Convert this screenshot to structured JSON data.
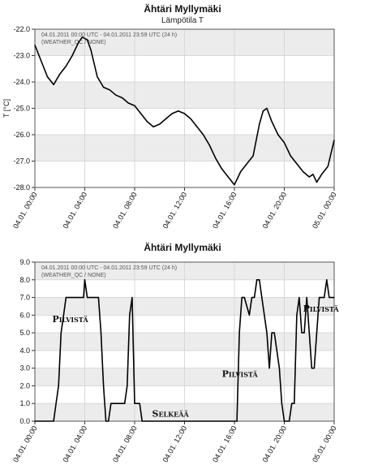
{
  "chart_data": [
    {
      "type": "line",
      "title": "Ähtäri Myllymäki",
      "subtitle": "Lämpötila T",
      "ylabel": "T [°C]",
      "xlabel": "",
      "ylim": [
        -28.0,
        -22.0
      ],
      "xlim": [
        0,
        24
      ],
      "y_ticks": [
        "-22.0",
        "-23.0",
        "-24.0",
        "-25.0",
        "-26.0",
        "-27.0",
        "-28.0"
      ],
      "x_ticks": [
        {
          "x": 0,
          "label": "04.01. 00:00"
        },
        {
          "x": 4,
          "label": "04.01. 04:00"
        },
        {
          "x": 8,
          "label": "04.01. 08:00"
        },
        {
          "x": 12,
          "label": "04.01. 12:00"
        },
        {
          "x": 16,
          "label": "04.01. 16:00"
        },
        {
          "x": 20,
          "label": "04.01. 20:00"
        },
        {
          "x": 24,
          "label": "05.01. 00:00"
        }
      ],
      "info_lines": [
        "04.01.2011 00:00 UTC - 04.01.2011 23:59 UTC (24 h)",
        "(WEATHER_QC / NONE)"
      ],
      "grid": true,
      "series": [
        {
          "name": "",
          "color": "#000000",
          "x": [
            0,
            0.5,
            1.0,
            1.5,
            2.0,
            2.5,
            3.0,
            3.5,
            3.8,
            4.2,
            4.5,
            5.0,
            5.5,
            6.0,
            6.5,
            7.0,
            7.5,
            8.0,
            8.5,
            9.0,
            9.5,
            10.0,
            10.5,
            11.0,
            11.5,
            12.0,
            12.5,
            13.0,
            13.5,
            14.0,
            14.5,
            15.0,
            15.5,
            16.0,
            16.5,
            17.0,
            17.5,
            18.0,
            18.3,
            18.6,
            19.0,
            19.5,
            20.0,
            20.5,
            21.0,
            21.5,
            22.0,
            22.3,
            22.6,
            23.0,
            23.5,
            24.0
          ],
          "y": [
            -22.6,
            -23.2,
            -23.8,
            -24.1,
            -23.7,
            -23.4,
            -23.0,
            -22.5,
            -22.3,
            -22.4,
            -22.8,
            -23.8,
            -24.2,
            -24.3,
            -24.5,
            -24.6,
            -24.8,
            -24.9,
            -25.2,
            -25.5,
            -25.7,
            -25.6,
            -25.4,
            -25.2,
            -25.1,
            -25.2,
            -25.4,
            -25.7,
            -26.0,
            -26.4,
            -26.9,
            -27.3,
            -27.6,
            -27.9,
            -27.4,
            -27.1,
            -26.8,
            -25.6,
            -25.1,
            -25.0,
            -25.5,
            -26.0,
            -26.3,
            -26.8,
            -27.1,
            -27.4,
            -27.6,
            -27.5,
            -27.8,
            -27.5,
            -27.2,
            -26.2
          ]
        }
      ]
    },
    {
      "type": "line",
      "title": "Ähtäri Myllymäki",
      "ylabel": "",
      "xlabel": "",
      "ylim": [
        0.0,
        9.0
      ],
      "xlim": [
        0,
        24
      ],
      "y_ticks": [
        "9.0",
        "8.0",
        "7.0",
        "6.0",
        "5.0",
        "4.0",
        "3.0",
        "2.0",
        "1.0",
        "0.0"
      ],
      "x_ticks": [
        {
          "x": 0,
          "label": "04.01. 00:00"
        },
        {
          "x": 4,
          "label": "04.01. 04:00"
        },
        {
          "x": 8,
          "label": "04.01. 08:00"
        },
        {
          "x": 12,
          "label": "04.01. 12:00"
        },
        {
          "x": 16,
          "label": "04.01. 16:00"
        },
        {
          "x": 20,
          "label": "04.01. 20:00"
        },
        {
          "x": 24,
          "label": "05.01. 00:00"
        }
      ],
      "info_lines": [
        "04.01.2011 00:00 UTC - 04.01.2011 23:59 UTC (24 h)",
        "(WEATHER_QC / NONE)"
      ],
      "grid": true,
      "annotations": [
        {
          "text": "Pilvistä",
          "x": 1.4,
          "y": 5.6
        },
        {
          "text": "Selkeää",
          "x": 9.4,
          "y": 0.25
        },
        {
          "text": "Pilvistä",
          "x": 15.0,
          "y": 2.5
        },
        {
          "text": "Pilvistä",
          "x": 21.5,
          "y": 6.2
        }
      ],
      "series": [
        {
          "name": "",
          "color": "#000000",
          "x": [
            0,
            1.5,
            1.7,
            1.9,
            2.1,
            2.3,
            2.5,
            3.9,
            4.0,
            4.2,
            4.3,
            5.1,
            5.3,
            5.5,
            5.7,
            5.9,
            6.1,
            6.3,
            6.5,
            6.7,
            7.2,
            7.4,
            7.6,
            7.8,
            8.0,
            8.4,
            8.6,
            8.8,
            9.0,
            9.2,
            16.2,
            16.4,
            16.6,
            16.8,
            17.2,
            17.4,
            17.6,
            17.8,
            18.0,
            18.2,
            18.4,
            18.6,
            18.8,
            19.0,
            19.2,
            19.4,
            19.6,
            19.8,
            20.0,
            20.2,
            20.4,
            20.6,
            20.8,
            21.0,
            21.2,
            21.4,
            21.6,
            21.8,
            22.0,
            22.2,
            22.4,
            22.6,
            22.8,
            23.0,
            23.2,
            23.4,
            23.6,
            23.8,
            24.0
          ],
          "y": [
            0,
            0,
            1,
            2,
            5,
            6,
            7,
            7,
            8,
            7,
            7,
            7,
            5,
            2,
            0,
            0,
            1,
            1,
            1,
            1,
            1,
            2,
            6,
            7,
            1,
            1,
            0,
            0,
            0,
            0,
            0,
            5,
            7,
            7,
            6,
            7,
            7,
            8,
            8,
            7,
            6,
            5,
            3,
            5,
            5,
            4,
            3,
            1,
            0,
            0,
            0,
            1,
            1,
            6,
            7,
            5,
            5,
            7,
            5,
            3,
            3,
            5,
            7,
            7,
            7,
            8,
            7,
            7,
            7
          ]
        }
      ]
    }
  ]
}
